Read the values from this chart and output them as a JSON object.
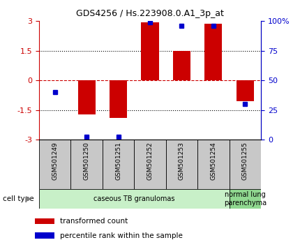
{
  "title": "GDS4256 / Hs.223908.0.A1_3p_at",
  "samples": [
    "GSM501249",
    "GSM501250",
    "GSM501251",
    "GSM501252",
    "GSM501253",
    "GSM501254",
    "GSM501255"
  ],
  "red_values": [
    0.0,
    -1.72,
    -1.9,
    2.95,
    1.5,
    2.85,
    -1.05
  ],
  "blue_values_mapped": [
    -0.6,
    -2.85,
    -2.85,
    2.95,
    2.75,
    2.75,
    -1.2
  ],
  "ylim": [
    -3,
    3
  ],
  "yticks_left": [
    -3,
    -1.5,
    0,
    1.5,
    3
  ],
  "ytick_labels_left": [
    "-3",
    "-1.5",
    "0",
    "1.5",
    "3"
  ],
  "yticks_right_pct": [
    0,
    25,
    50,
    75,
    100
  ],
  "ytick_labels_right": [
    "0",
    "25",
    "50",
    "75",
    "100%"
  ],
  "cell_type_groups": [
    {
      "label": "caseous TB granulomas",
      "span": 6,
      "color": "#c8f0c8"
    },
    {
      "label": "normal lung\nparenchyma",
      "span": 1,
      "color": "#90d890"
    }
  ],
  "red_color": "#cc0000",
  "blue_color": "#0000cc",
  "zero_line_color": "#cc0000",
  "dotted_line_color": "#000000",
  "bar_width": 0.55,
  "blue_marker_size": 5,
  "tick_label_color_left": "#cc0000",
  "tick_label_color_right": "#0000cc",
  "xlabel_gray": "#c0c0c0",
  "sample_box_color": "#c8c8c8",
  "legend_items": [
    {
      "color": "#cc0000",
      "label": "transformed count"
    },
    {
      "color": "#0000cc",
      "label": "percentile rank within the sample"
    }
  ],
  "fig_width": 4.3,
  "fig_height": 3.54,
  "dpi": 100
}
